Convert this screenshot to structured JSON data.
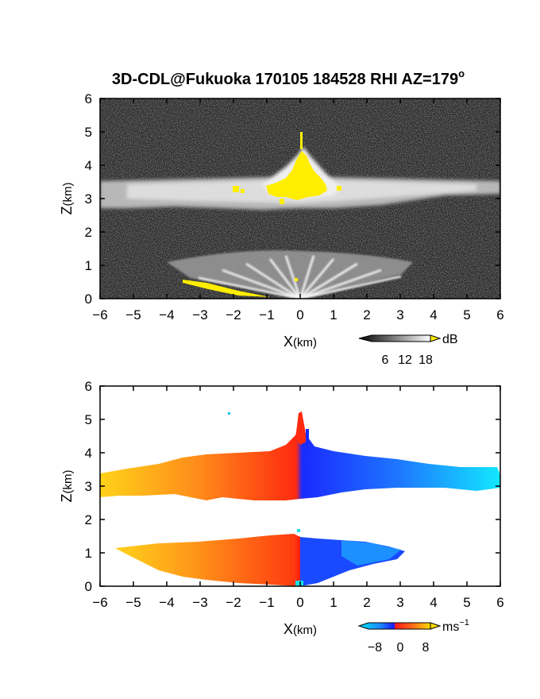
{
  "chart_data": [
    {
      "type": "heatmap",
      "title": "3D-CDL@Fukuoka 170105 184528 RHI AZ=179",
      "title_suffix": "o",
      "xlabel_main": "X",
      "xlabel_unit": "(km)",
      "ylabel_main": "Z",
      "ylabel_unit": "(km)",
      "xlim": [
        -6,
        6
      ],
      "ylim": [
        0,
        6
      ],
      "xticks": [
        -6,
        -5,
        -4,
        -3,
        -2,
        -1,
        0,
        1,
        2,
        3,
        4,
        5,
        6
      ],
      "yticks": [
        0,
        1,
        2,
        3,
        4,
        5,
        6
      ],
      "colorbar": {
        "unit": "dB",
        "ticks": [
          "6",
          "12",
          "18"
        ],
        "tick_values": [
          6,
          12,
          18
        ],
        "range": [
          0,
          20
        ],
        "colors": [
          "#000000",
          "#ffffff"
        ],
        "overflow_color": "#ffee00"
      },
      "features": {
        "cloud_layer_km": [
          2.7,
          3.6
        ],
        "strong_echo_color": "#ffee00",
        "strong_echo_center": [
          0.0,
          3.5
        ],
        "boundary_layer_top_km": 1.3
      }
    },
    {
      "type": "heatmap",
      "xlabel_main": "X",
      "xlabel_unit": "(km)",
      "ylabel_main": "Z",
      "ylabel_unit": "(km)",
      "xlim": [
        -6,
        6
      ],
      "ylim": [
        0,
        6
      ],
      "xticks": [
        -6,
        -5,
        -4,
        -3,
        -2,
        -1,
        0,
        1,
        2,
        3,
        4,
        5,
        6
      ],
      "yticks": [
        0,
        1,
        2,
        3,
        4,
        5,
        6
      ],
      "colorbar": {
        "unit": "ms",
        "unit_exp": "−1",
        "ticks": [
          "−8",
          "0",
          "8"
        ],
        "tick_values": [
          -8,
          0,
          8
        ],
        "range": [
          -10,
          10
        ],
        "colors": [
          "#00e5ff",
          "#1e88ff",
          "#1a1aff",
          "#ff1a1a",
          "#ff6a1a",
          "#ffdd00"
        ]
      },
      "features": {
        "upper_layer_km": [
          2.6,
          3.8
        ],
        "lower_layer_km": [
          0.0,
          1.3
        ],
        "negative_side": "x>0",
        "positive_side": "x<0"
      }
    }
  ]
}
